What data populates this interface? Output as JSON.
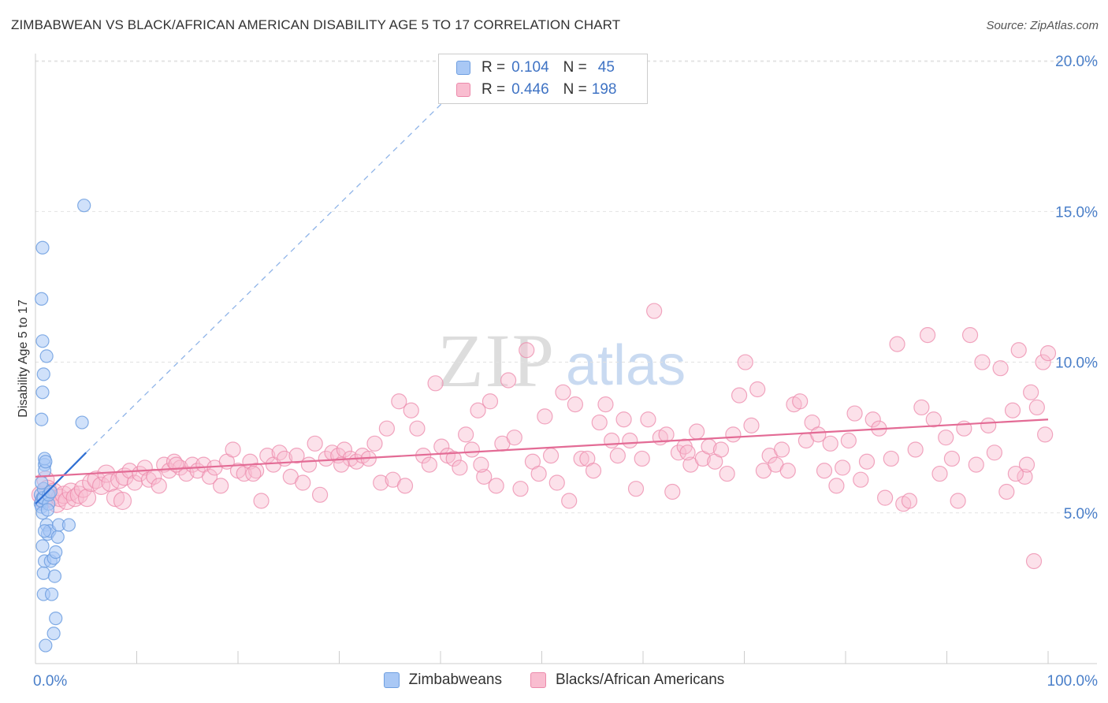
{
  "title": "ZIMBABWEAN VS BLACK/AFRICAN AMERICAN DISABILITY AGE 5 TO 17 CORRELATION CHART",
  "source": "Source: ZipAtlas.com",
  "watermark": {
    "zip": "ZIP",
    "atlas": "atlas"
  },
  "legend": {
    "r_label": "R =",
    "n_label": "N =",
    "rows": [
      {
        "r": "0.104",
        "n": "45",
        "color": "#a9c8f5",
        "border": "#6f9fe0"
      },
      {
        "r": "0.446",
        "n": "198",
        "color": "#f9bdd0",
        "border": "#ec8aab"
      }
    ]
  },
  "bottom_legend": [
    {
      "label": "Zimbabweans",
      "color": "#a9c8f5",
      "border": "#6f9fe0"
    },
    {
      "label": "Blacks/African Americans",
      "color": "#f9bdd0",
      "border": "#ec8aab"
    }
  ],
  "chart_data": {
    "type": "scatter",
    "title": "ZIMBABWEAN VS BLACK/AFRICAN AMERICAN DISABILITY AGE 5 TO 17 CORRELATION CHART",
    "ylabel": "Disability Age 5 to 17",
    "xlabel": "",
    "xlim": [
      0,
      100
    ],
    "ylim": [
      0,
      20.5
    ],
    "x_ticks": [
      "0.0%",
      "100.0%"
    ],
    "y_ticks": [
      {
        "value": 5,
        "label": "5.0%"
      },
      {
        "value": 10,
        "label": "10.0%"
      },
      {
        "value": 15,
        "label": "15.0%"
      },
      {
        "value": 20,
        "label": "20.0%"
      }
    ],
    "grid": true,
    "colors": {
      "blue": "#6f9fe0",
      "blue_fill": "#a9c8f5",
      "pink": "#ec8aab",
      "pink_fill": "#f9bdd0",
      "blue_line": "#2f6fd3",
      "pink_line": "#e36b95"
    },
    "series": [
      {
        "name": "Zimbabweans",
        "points": [
          [
            0.5,
            5.3
          ],
          [
            0.5,
            5.6
          ],
          [
            0.6,
            5.2
          ],
          [
            0.6,
            5.4
          ],
          [
            0.7,
            5.5
          ],
          [
            0.8,
            5.5
          ],
          [
            0.8,
            5.8
          ],
          [
            0.9,
            6.6
          ],
          [
            0.9,
            6.4
          ],
          [
            0.9,
            6.8
          ],
          [
            0.6,
            6.0
          ],
          [
            0.7,
            5.0
          ],
          [
            0.7,
            3.9
          ],
          [
            0.8,
            3.0
          ],
          [
            0.8,
            2.3
          ],
          [
            0.9,
            3.4
          ],
          [
            1.0,
            6.7
          ],
          [
            1.1,
            4.6
          ],
          [
            1.2,
            4.3
          ],
          [
            1.3,
            5.3
          ],
          [
            1.3,
            5.6
          ],
          [
            1.4,
            4.4
          ],
          [
            1.5,
            3.4
          ],
          [
            1.6,
            2.3
          ],
          [
            1.8,
            3.5
          ],
          [
            1.9,
            2.9
          ],
          [
            2.0,
            3.7
          ],
          [
            2.0,
            1.5
          ],
          [
            2.2,
            4.2
          ],
          [
            2.3,
            4.6
          ],
          [
            1.8,
            1.0
          ],
          [
            1.0,
            0.6
          ],
          [
            0.6,
            12.1
          ],
          [
            0.7,
            10.7
          ],
          [
            0.8,
            9.6
          ],
          [
            0.7,
            9.0
          ],
          [
            0.6,
            8.1
          ],
          [
            0.7,
            13.8
          ],
          [
            1.1,
            10.2
          ],
          [
            4.6,
            8.0
          ],
          [
            4.8,
            15.2
          ],
          [
            1.5,
            5.7
          ],
          [
            1.2,
            5.1
          ],
          [
            0.9,
            4.4
          ],
          [
            3.3,
            4.6
          ]
        ],
        "trend": {
          "x0": 0,
          "y0": 5.3,
          "x1": 5,
          "y1": 7.0,
          "dashed_to": [
            42,
            19.2
          ]
        }
      },
      {
        "name": "Blacks/African Americans",
        "points": [
          [
            0.5,
            5.6
          ],
          [
            0.8,
            5.4
          ],
          [
            1.0,
            6.1
          ],
          [
            1.2,
            5.8
          ],
          [
            1.5,
            5.5
          ],
          [
            1.8,
            5.7
          ],
          [
            2.1,
            5.3
          ],
          [
            2.4,
            5.5
          ],
          [
            2.8,
            5.6
          ],
          [
            3.1,
            5.4
          ],
          [
            3.5,
            5.7
          ],
          [
            3.9,
            5.5
          ],
          [
            4.3,
            5.6
          ],
          [
            4.7,
            5.8
          ],
          [
            5.1,
            5.5
          ],
          [
            5.5,
            6.0
          ],
          [
            6.0,
            6.1
          ],
          [
            6.5,
            5.9
          ],
          [
            7.0,
            6.3
          ],
          [
            7.4,
            6.0
          ],
          [
            7.9,
            5.5
          ],
          [
            8.3,
            6.1
          ],
          [
            8.8,
            6.2
          ],
          [
            9.3,
            6.4
          ],
          [
            9.8,
            6.0
          ],
          [
            10.3,
            6.3
          ],
          [
            10.8,
            6.5
          ],
          [
            11.2,
            6.1
          ],
          [
            11.7,
            6.2
          ],
          [
            12.2,
            5.9
          ],
          [
            12.7,
            6.6
          ],
          [
            13.2,
            6.4
          ],
          [
            13.7,
            6.7
          ],
          [
            14.3,
            6.5
          ],
          [
            14.9,
            6.3
          ],
          [
            15.5,
            6.6
          ],
          [
            16.0,
            6.4
          ],
          [
            16.6,
            6.6
          ],
          [
            17.2,
            6.2
          ],
          [
            17.7,
            6.5
          ],
          [
            18.3,
            5.9
          ],
          [
            18.9,
            6.7
          ],
          [
            19.5,
            7.1
          ],
          [
            20.0,
            6.4
          ],
          [
            20.6,
            6.3
          ],
          [
            21.2,
            6.7
          ],
          [
            21.8,
            6.4
          ],
          [
            22.3,
            5.4
          ],
          [
            22.9,
            6.9
          ],
          [
            23.5,
            6.6
          ],
          [
            24.1,
            7.0
          ],
          [
            24.6,
            6.8
          ],
          [
            25.2,
            6.2
          ],
          [
            25.8,
            6.9
          ],
          [
            26.4,
            6.0
          ],
          [
            27.0,
            6.6
          ],
          [
            27.6,
            7.3
          ],
          [
            28.1,
            5.6
          ],
          [
            28.7,
            6.8
          ],
          [
            29.3,
            7.0
          ],
          [
            29.9,
            6.9
          ],
          [
            30.5,
            7.1
          ],
          [
            31.1,
            6.8
          ],
          [
            31.7,
            6.7
          ],
          [
            32.3,
            6.9
          ],
          [
            32.9,
            6.8
          ],
          [
            33.5,
            7.3
          ],
          [
            34.1,
            6.0
          ],
          [
            34.7,
            7.8
          ],
          [
            35.3,
            6.1
          ],
          [
            35.9,
            8.7
          ],
          [
            36.5,
            5.9
          ],
          [
            37.1,
            8.4
          ],
          [
            37.7,
            7.8
          ],
          [
            38.3,
            6.9
          ],
          [
            38.9,
            6.6
          ],
          [
            39.5,
            9.3
          ],
          [
            40.1,
            7.2
          ],
          [
            40.7,
            6.9
          ],
          [
            41.3,
            6.8
          ],
          [
            41.9,
            6.5
          ],
          [
            42.5,
            7.6
          ],
          [
            43.1,
            7.1
          ],
          [
            43.7,
            8.4
          ],
          [
            44.3,
            6.2
          ],
          [
            44.9,
            8.7
          ],
          [
            45.5,
            5.9
          ],
          [
            46.1,
            7.3
          ],
          [
            46.7,
            9.4
          ],
          [
            47.3,
            7.5
          ],
          [
            47.9,
            5.8
          ],
          [
            48.5,
            10.4
          ],
          [
            49.1,
            6.7
          ],
          [
            49.7,
            6.3
          ],
          [
            50.3,
            8.2
          ],
          [
            50.9,
            6.9
          ],
          [
            51.5,
            6.0
          ],
          [
            52.1,
            9.0
          ],
          [
            52.7,
            5.4
          ],
          [
            53.3,
            8.6
          ],
          [
            53.9,
            6.8
          ],
          [
            54.5,
            6.8
          ],
          [
            55.1,
            6.4
          ],
          [
            55.7,
            8.0
          ],
          [
            56.3,
            8.6
          ],
          [
            56.9,
            7.4
          ],
          [
            57.5,
            6.9
          ],
          [
            58.1,
            8.1
          ],
          [
            58.7,
            7.4
          ],
          [
            59.3,
            5.8
          ],
          [
            59.9,
            6.8
          ],
          [
            60.5,
            8.1
          ],
          [
            61.1,
            11.7
          ],
          [
            61.7,
            7.5
          ],
          [
            62.3,
            7.6
          ],
          [
            62.9,
            5.7
          ],
          [
            63.5,
            7.0
          ],
          [
            64.1,
            7.2
          ],
          [
            64.7,
            6.6
          ],
          [
            65.3,
            7.7
          ],
          [
            65.9,
            6.8
          ],
          [
            66.5,
            7.2
          ],
          [
            67.1,
            6.7
          ],
          [
            67.7,
            7.1
          ],
          [
            68.3,
            6.3
          ],
          [
            68.9,
            7.6
          ],
          [
            69.5,
            8.9
          ],
          [
            70.1,
            10.0
          ],
          [
            70.7,
            7.9
          ],
          [
            71.3,
            9.1
          ],
          [
            71.9,
            6.4
          ],
          [
            72.5,
            6.9
          ],
          [
            73.1,
            6.6
          ],
          [
            73.7,
            7.1
          ],
          [
            74.3,
            6.4
          ],
          [
            74.9,
            8.6
          ],
          [
            75.5,
            8.7
          ],
          [
            76.1,
            7.4
          ],
          [
            76.7,
            8.0
          ],
          [
            77.3,
            7.6
          ],
          [
            77.9,
            6.4
          ],
          [
            78.5,
            7.3
          ],
          [
            79.1,
            5.9
          ],
          [
            79.7,
            6.5
          ],
          [
            80.3,
            7.4
          ],
          [
            80.9,
            8.3
          ],
          [
            81.5,
            6.1
          ],
          [
            82.1,
            6.7
          ],
          [
            82.7,
            8.1
          ],
          [
            83.3,
            7.8
          ],
          [
            83.9,
            5.5
          ],
          [
            84.5,
            6.8
          ],
          [
            85.1,
            10.6
          ],
          [
            85.7,
            5.3
          ],
          [
            86.3,
            5.4
          ],
          [
            86.9,
            7.1
          ],
          [
            87.5,
            8.5
          ],
          [
            88.1,
            10.9
          ],
          [
            88.7,
            8.1
          ],
          [
            89.3,
            6.3
          ],
          [
            89.9,
            7.5
          ],
          [
            90.5,
            6.8
          ],
          [
            91.1,
            5.4
          ],
          [
            91.7,
            7.8
          ],
          [
            92.3,
            10.9
          ],
          [
            92.9,
            6.6
          ],
          [
            93.5,
            10.0
          ],
          [
            94.1,
            7.9
          ],
          [
            94.7,
            7.0
          ],
          [
            95.3,
            9.8
          ],
          [
            95.9,
            5.7
          ],
          [
            96.5,
            8.4
          ],
          [
            97.1,
            10.4
          ],
          [
            97.7,
            6.2
          ],
          [
            98.3,
            9.0
          ],
          [
            98.9,
            8.5
          ],
          [
            99.5,
            10.0
          ],
          [
            100.0,
            10.3
          ],
          [
            99.7,
            7.6
          ],
          [
            98.6,
            3.4
          ],
          [
            97.9,
            6.6
          ],
          [
            96.8,
            6.3
          ],
          [
            8.6,
            5.4
          ],
          [
            13.9,
            6.6
          ],
          [
            21.5,
            6.3
          ],
          [
            30.2,
            6.6
          ],
          [
            44.0,
            6.6
          ],
          [
            64.4,
            7.0
          ]
        ],
        "trend": {
          "x0": 0,
          "y0": 6.2,
          "x1": 100,
          "y1": 8.1
        }
      }
    ]
  }
}
